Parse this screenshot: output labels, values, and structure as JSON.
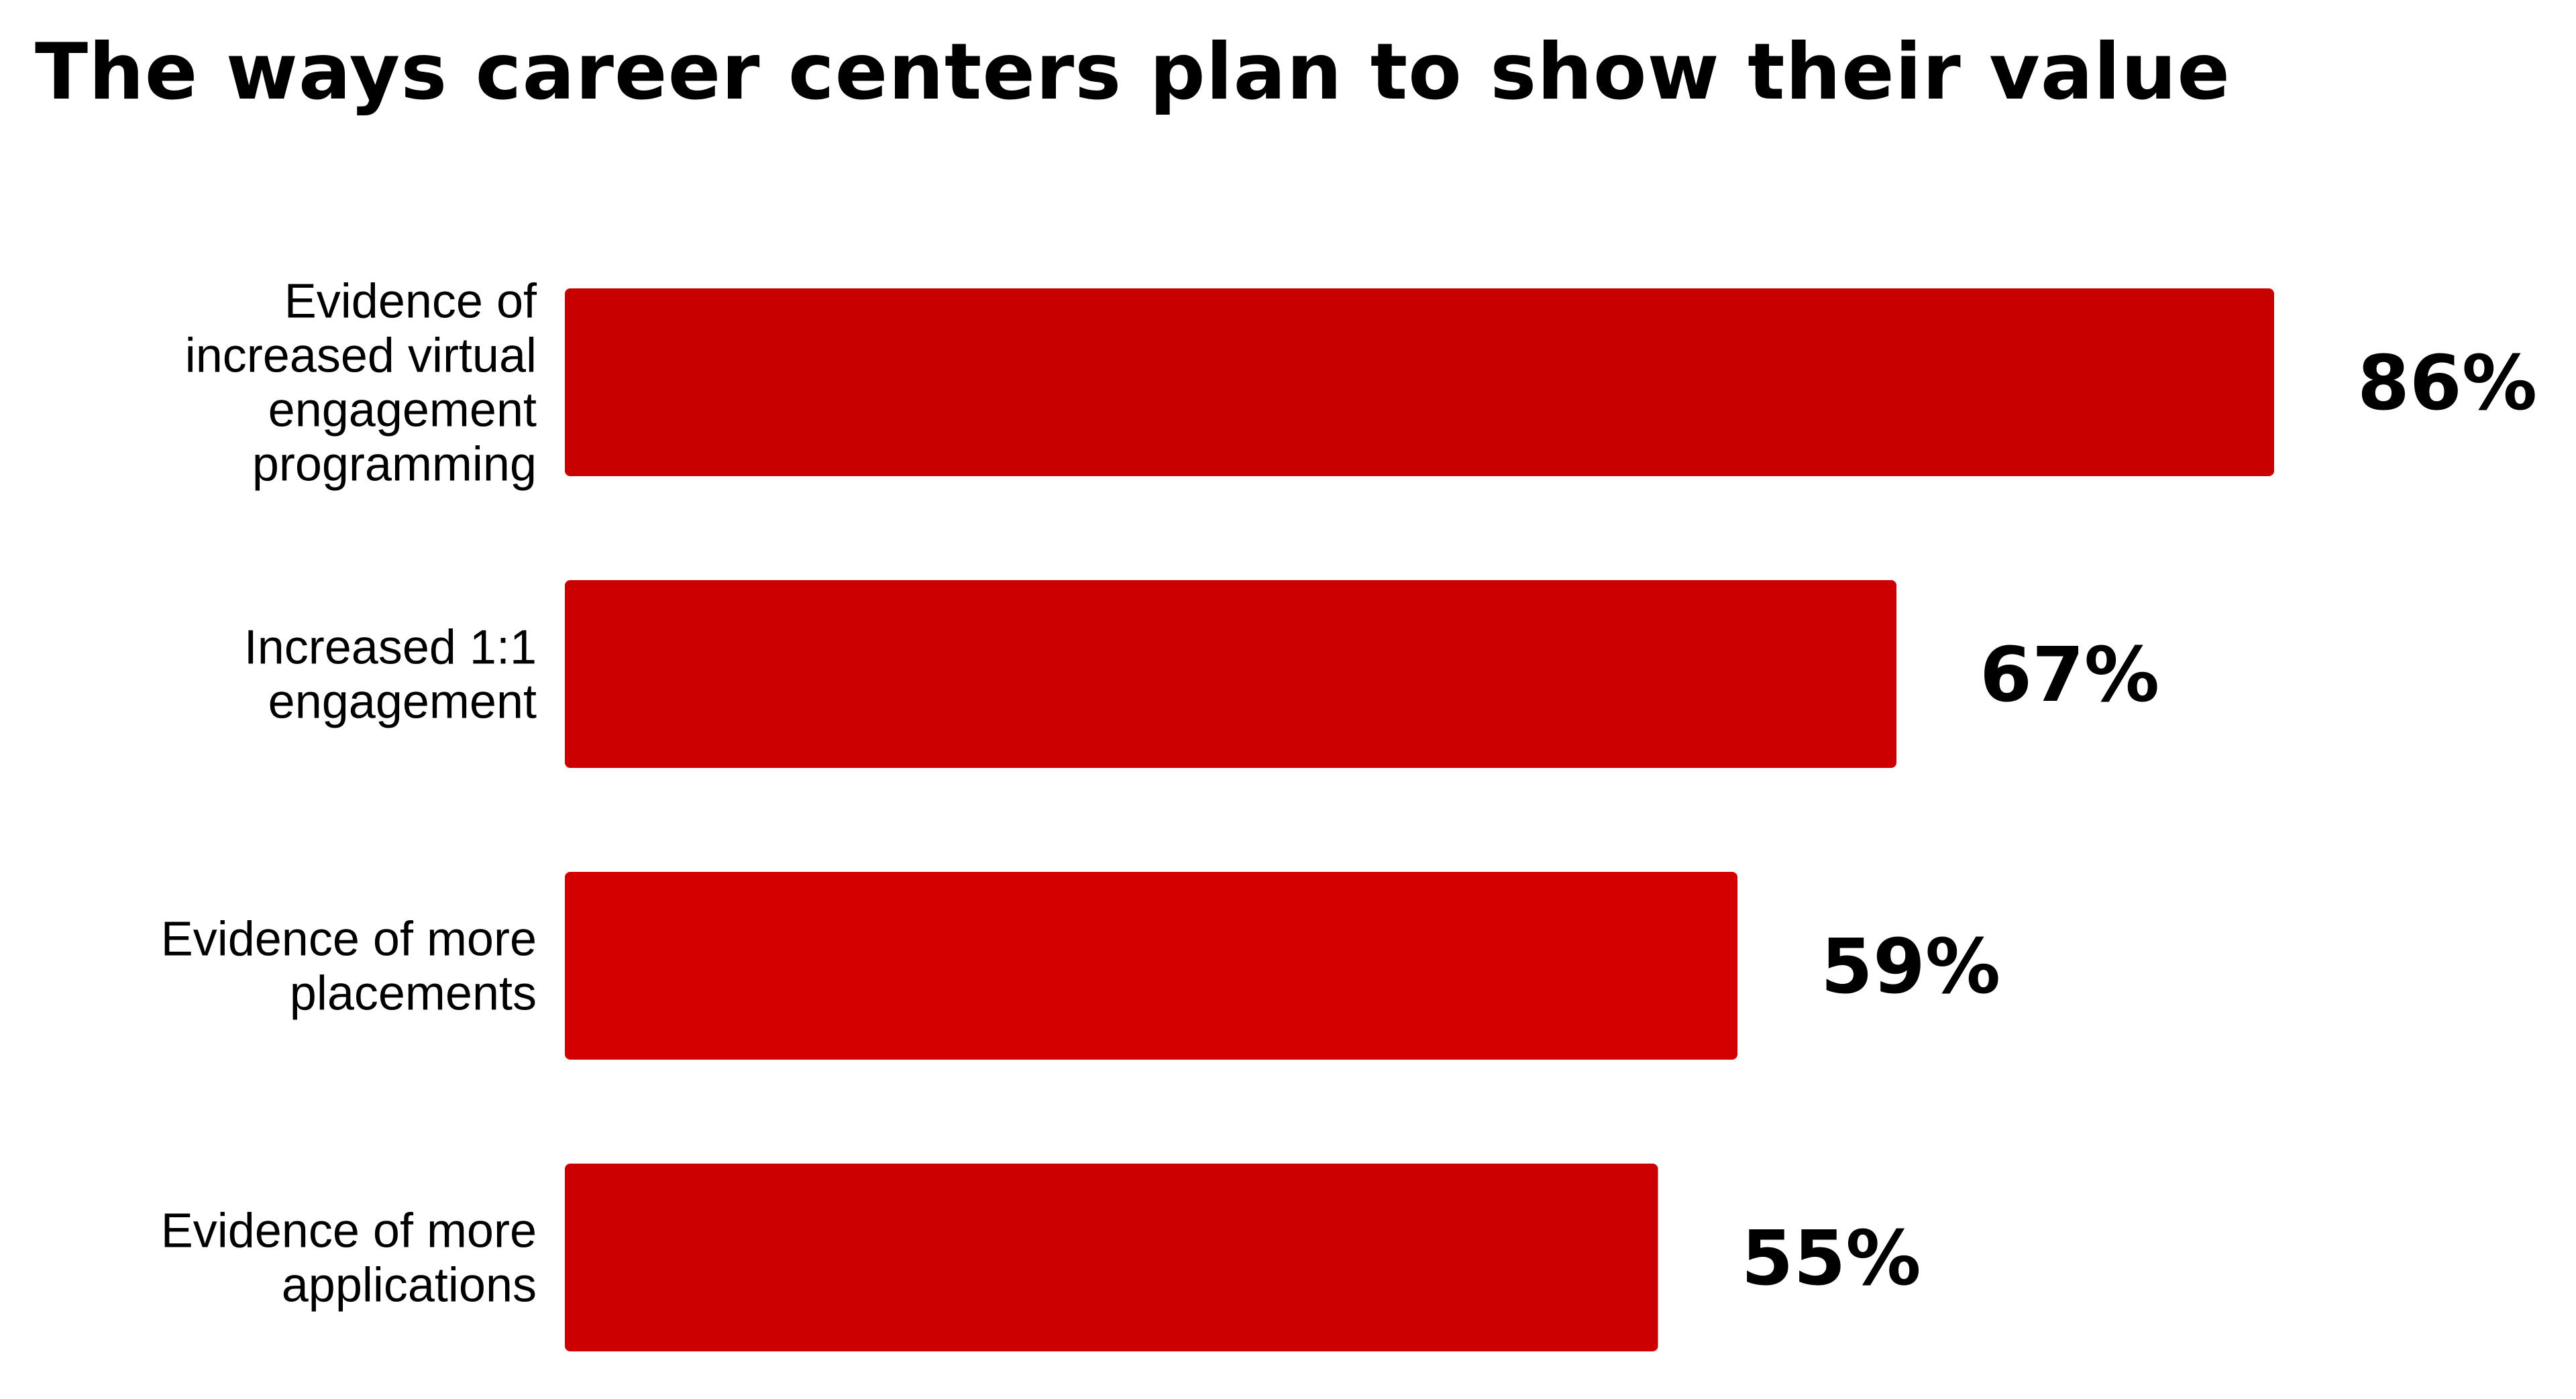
{
  "chart_data": {
    "type": "bar",
    "orientation": "horizontal",
    "title": "The ways career centers plan to show their value",
    "xlabel": "",
    "ylabel": "",
    "categories": [
      "Evidence of increased virtual engagement programming",
      "Increased 1:1 engagement",
      "Evidence of more placements",
      "Evidence of more applications"
    ],
    "category_lines": [
      [
        "Evidence of",
        "increased virtual",
        "engagement",
        "programming"
      ],
      [
        "Increased 1:1",
        "engagement"
      ],
      [
        "Evidence of more",
        "placements"
      ],
      [
        "Evidence of more",
        "applications"
      ]
    ],
    "values": [
      86,
      67,
      59,
      55
    ],
    "value_labels": [
      "86%",
      "67%",
      "59%",
      "55%"
    ],
    "unit": "%",
    "xlim": [
      0,
      86
    ],
    "grid": false,
    "legend": "none",
    "bar_colors": [
      "#c80000",
      "#cc0000",
      "#d40000",
      "#cc0000"
    ]
  }
}
